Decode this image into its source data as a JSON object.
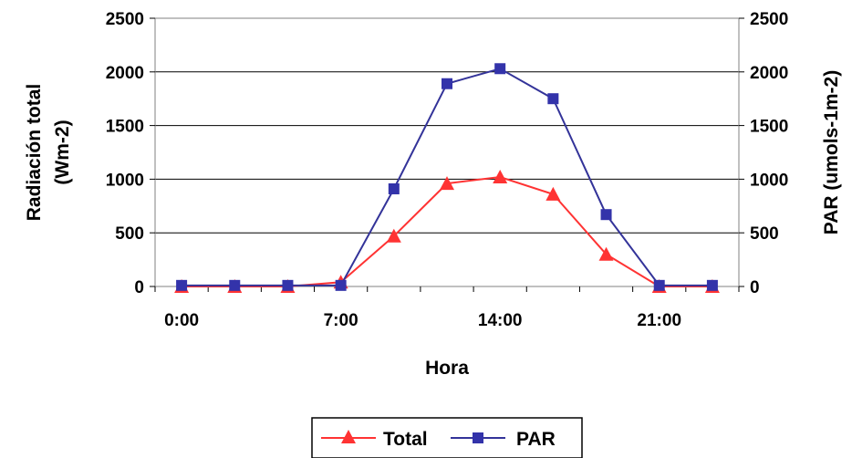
{
  "chart_data": {
    "type": "line",
    "x": [
      "0:00",
      "2:20",
      "4:40",
      "7:00",
      "9:20",
      "11:40",
      "14:00",
      "16:20",
      "18:40",
      "21:00",
      "23:20"
    ],
    "xticks": [
      "0:00",
      "7:00",
      "14:00",
      "21:00"
    ],
    "xlabel": "Hora",
    "ylabel_left": [
      "Radiación total",
      "(Wm-2)"
    ],
    "ylabel_right": "PAR (umols-1m-2)",
    "ylim_left": [
      0,
      2500
    ],
    "ylim_right": [
      0,
      2500
    ],
    "yticks": [
      0,
      500,
      1000,
      1500,
      2000,
      2500
    ],
    "grid": "horizontal",
    "legend_position": "bottom",
    "series": [
      {
        "name": "Total",
        "axis": "left",
        "marker": "triangle",
        "color": "#ff3333",
        "values": [
          0,
          0,
          0,
          40,
          470,
          960,
          1020,
          860,
          300,
          0,
          0
        ]
      },
      {
        "name": "PAR",
        "axis": "right",
        "marker": "square",
        "color": "#333399",
        "values": [
          10,
          10,
          10,
          10,
          910,
          1890,
          2030,
          1750,
          670,
          10,
          10
        ]
      }
    ]
  }
}
